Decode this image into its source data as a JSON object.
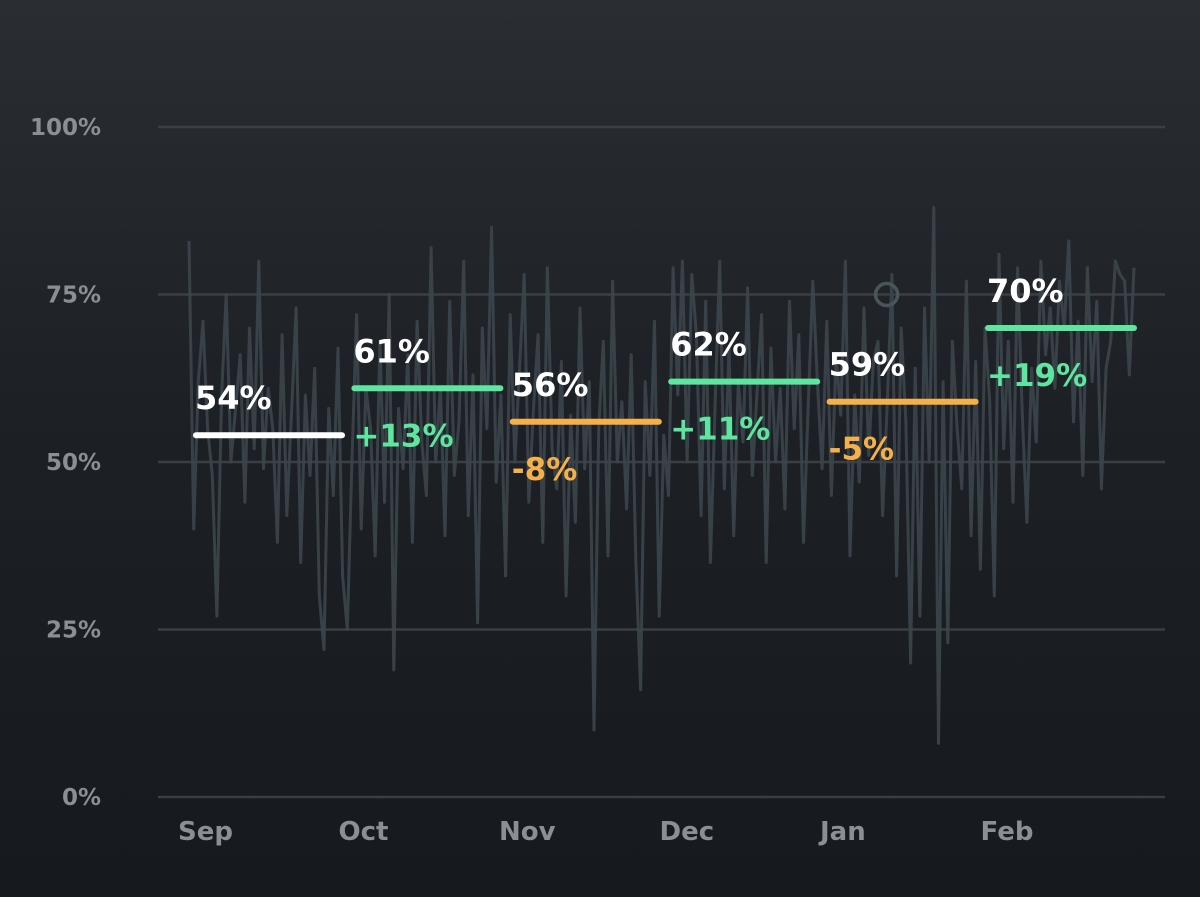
{
  "chart_data": {
    "type": "line",
    "title": "",
    "xlabel": "",
    "ylabel": "",
    "ylim": [
      0,
      100
    ],
    "yticks": [
      "0%",
      "25%",
      "50%",
      "75%",
      "100%"
    ],
    "ytick_values": [
      0,
      25,
      50,
      75,
      100
    ],
    "months": [
      "Sep",
      "Oct",
      "Nov",
      "Dec",
      "Jan",
      "Feb"
    ],
    "monthly_average": {
      "values": [
        54,
        61,
        56,
        62,
        59,
        70
      ],
      "labels": [
        "54%",
        "61%",
        "56%",
        "62%",
        "59%",
        "70%"
      ]
    },
    "month_over_month_change": {
      "values": [
        null,
        13,
        -8,
        11,
        -5,
        19
      ],
      "labels": [
        "",
        "+13%",
        "-8%",
        "+11%",
        "-5%",
        "+19%"
      ]
    },
    "daily_series": {
      "name": "daily",
      "values": [
        83,
        40,
        62,
        71,
        55,
        48,
        27,
        60,
        75,
        50,
        58,
        66,
        44,
        70,
        52,
        80,
        49,
        61,
        55,
        38,
        69,
        42,
        57,
        73,
        35,
        60,
        48,
        64,
        30,
        22,
        58,
        45,
        67,
        33,
        25,
        50,
        72,
        40,
        61,
        55,
        36,
        68,
        44,
        75,
        19,
        58,
        49,
        66,
        38,
        71,
        53,
        45,
        82,
        50,
        61,
        39,
        74,
        48,
        56,
        80,
        42,
        63,
        26,
        70,
        55,
        85,
        47,
        60,
        33,
        72,
        50,
        64,
        78,
        44,
        58,
        69,
        38,
        79,
        52,
        46,
        65,
        30,
        57,
        41,
        73,
        49,
        62,
        10,
        55,
        68,
        36,
        77,
        50,
        59,
        43,
        66,
        35,
        16,
        62,
        48,
        71,
        27,
        54,
        45,
        79,
        60,
        80,
        50,
        78,
        69,
        42,
        74,
        35,
        58,
        80,
        46,
        67,
        39,
        62,
        53,
        76,
        48,
        60,
        72,
        35,
        67,
        50,
        61,
        43,
        74,
        55,
        69,
        38,
        58,
        77,
        62,
        49,
        71,
        45,
        66,
        57,
        80,
        36,
        60,
        47,
        73,
        51,
        65,
        68,
        42,
        59,
        78,
        33,
        70,
        56,
        20,
        64,
        27,
        73,
        50,
        88,
        8,
        62,
        23,
        68,
        55,
        46,
        77,
        39,
        65,
        34,
        70,
        59,
        30,
        81,
        52,
        68,
        44,
        79,
        57,
        41,
        64,
        53,
        80,
        66,
        73,
        61,
        77,
        70,
        83,
        56,
        71,
        48,
        79,
        62,
        74,
        46,
        64,
        68,
        80,
        78,
        77,
        63,
        79
      ]
    },
    "marker": {
      "month_index": 4,
      "value": 75
    }
  },
  "colors": {
    "baseline": "#ffffff",
    "increase": "#5ee6a0",
    "decrease": "#f5b04a",
    "daily_line": "#3c454c",
    "marker": "#4a545b"
  }
}
